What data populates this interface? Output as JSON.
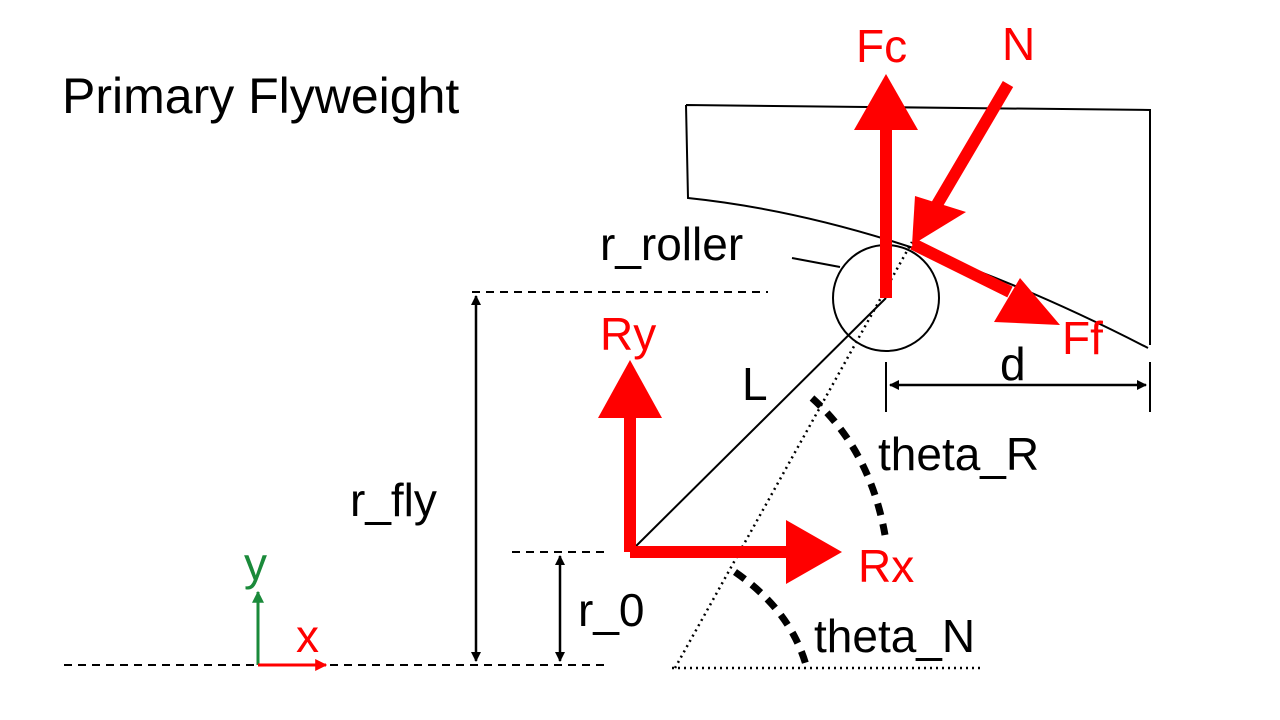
{
  "title": "Primary Flyweight",
  "labels": {
    "fc": "Fc",
    "n": "N",
    "ff": "Ff",
    "ry": "Ry",
    "rx": "Rx",
    "r_roller": "r_roller",
    "l": "L",
    "d": "d",
    "theta_r": "theta_R",
    "theta_n": "theta_N",
    "r_fly": "r_fly",
    "r_0": "r_0",
    "axis_x": "x",
    "axis_y": "y"
  },
  "colors": {
    "force": "#ff0000",
    "line": "#000000",
    "axis_y": "#1a8a3a",
    "axis_x": "#ff0000"
  }
}
